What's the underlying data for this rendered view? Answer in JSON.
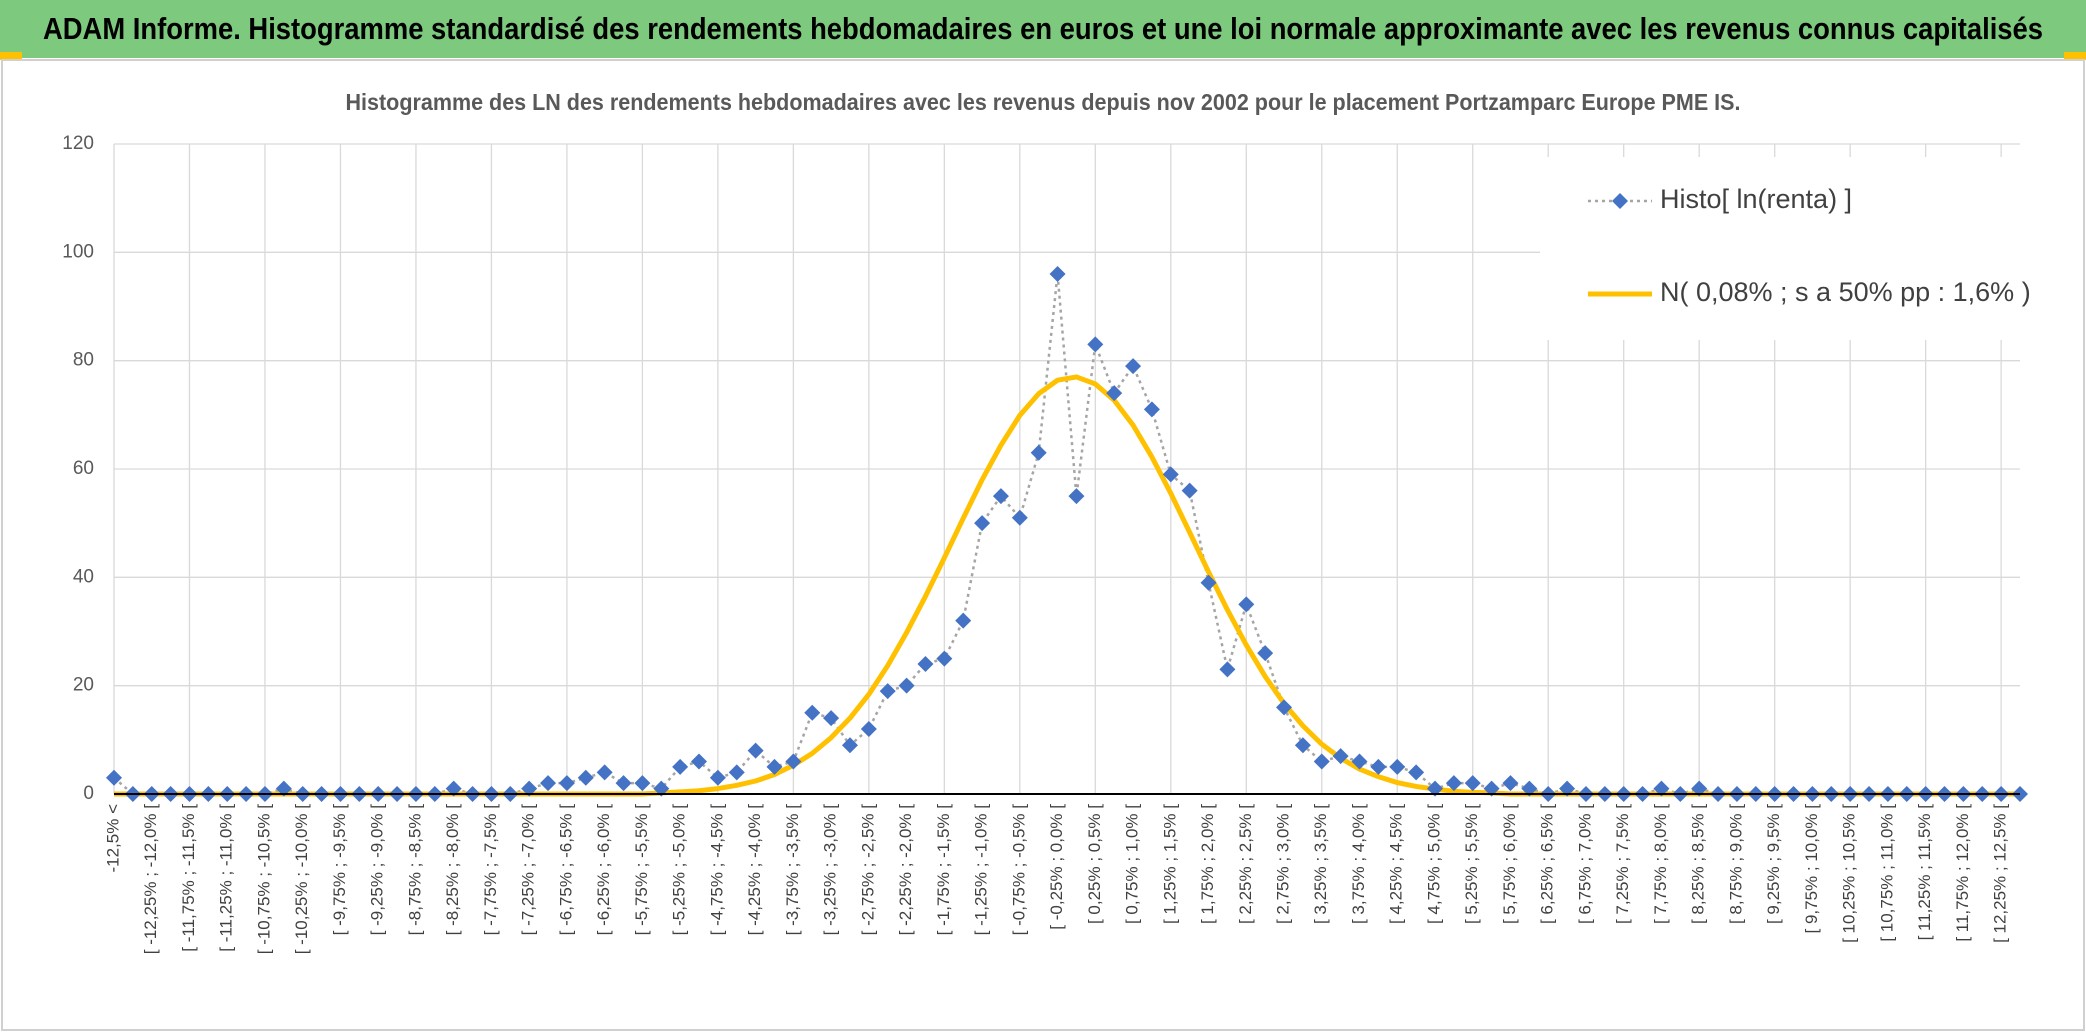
{
  "chart_data": {
    "type": "line",
    "title": "ADAM Informe. Histogramme standardisé des rendements hebdomadaires en euros et une loi normale approximante avec les revenus connus capitalisés",
    "subtitle": "Histogramme des LN des rendements hebdomadaires avec les revenus depuis nov 2002 pour le placement Portzamparc Europe PME IS.",
    "categories": [
      "-12,5% <",
      null,
      "[ -12,25% ; -12,0% [",
      null,
      "[ -11,75% ; -11,5% [",
      null,
      "[ -11,25% ; -11,0% [",
      null,
      "[ -10,75% ; -10,5% [",
      null,
      "[ -10,25% ; -10,0% [",
      null,
      "[ -9,75% ; -9,5% [",
      null,
      "[ -9,25% ; -9,0% [",
      null,
      "[ -8,75% ; -8,5% [",
      null,
      "[ -8,25% ; -8,0% [",
      null,
      "[ -7,75% ; -7,5% [",
      null,
      "[ -7,25% ; -7,0% [",
      null,
      "[ -6,75% ; -6,5% [",
      null,
      "[ -6,25% ; -6,0% [",
      null,
      "[ -5,75% ; -5,5% [",
      null,
      "[ -5,25% ; -5,0% [",
      null,
      "[ -4,75% ; -4,5% [",
      null,
      "[ -4,25% ; -4,0% [",
      null,
      "[ -3,75% ; -3,5% [",
      null,
      "[ -3,25% ; -3,0% [",
      null,
      "[ -2,75% ; -2,5% [",
      null,
      "[ -2,25% ; -2,0% [",
      null,
      "[ -1,75% ; -1,5% [",
      null,
      "[ -1,25% ; -1,0% [",
      null,
      "[ -0,75% ; -0,5% [",
      null,
      "[ -0,25% ; 0,0% [",
      null,
      "[ 0,25% ; 0,5% [",
      null,
      "[ 0,75% ; 1,0% [",
      null,
      "[ 1,25% ; 1,5% [",
      null,
      "[ 1,75% ; 2,0% [",
      null,
      "[ 2,25% ; 2,5% [",
      null,
      "[ 2,75% ; 3,0% [",
      null,
      "[ 3,25% ; 3,5% [",
      null,
      "[ 3,75% ; 4,0% [",
      null,
      "[ 4,25% ; 4,5% [",
      null,
      "[ 4,75% ; 5,0% [",
      null,
      "[ 5,25% ; 5,5% [",
      null,
      "[ 5,75% ; 6,0% [",
      null,
      "[ 6,25% ; 6,5% [",
      null,
      "[ 6,75% ; 7,0% [",
      null,
      "[ 7,25% ; 7,5% [",
      null,
      "[ 7,75% ; 8,0% [",
      null,
      "[ 8,25% ; 8,5% [",
      null,
      "[ 8,75% ; 9,0% [",
      null,
      "[ 9,25% ; 9,5% [",
      null,
      "[ 9,75% ; 10,0% [",
      null,
      "[ 10,25% ; 10,5% [",
      null,
      "[ 10,75% ; 11,0% [",
      null,
      "[ 11,25% ; 11,5% [",
      null,
      "[ 11,75% ; 12,0% [",
      null,
      "[ 12,25% ; 12,5% [",
      null
    ],
    "series": [
      {
        "name": "Histo[ ln(renta) ]",
        "color": "#4472c4",
        "line_color": "#a5a5a5",
        "marker": "diamond",
        "values": [
          3,
          0,
          0,
          0,
          0,
          0,
          0,
          0,
          0,
          1,
          0,
          0,
          0,
          0,
          0,
          0,
          0,
          0,
          1,
          0,
          0,
          0,
          1,
          2,
          2,
          3,
          4,
          2,
          2,
          1,
          5,
          6,
          3,
          4,
          8,
          5,
          6,
          15,
          14,
          9,
          12,
          19,
          20,
          24,
          25,
          32,
          50,
          55,
          51,
          63,
          96,
          55,
          83,
          74,
          79,
          71,
          59,
          56,
          39,
          23,
          35,
          26,
          16,
          9,
          6,
          7,
          6,
          5,
          5,
          4,
          1,
          2,
          2,
          1,
          2,
          1,
          0,
          1,
          0,
          0,
          0,
          0,
          1,
          0,
          1,
          0,
          0,
          0,
          0,
          0,
          0,
          0,
          0,
          0,
          0,
          0,
          0,
          0,
          0,
          0,
          0,
          0
        ]
      },
      {
        "name": "N( 0,08% ; s a 50% pp : 1,6% )",
        "color": "#ffc000",
        "marker": "none",
        "values": [
          0,
          0,
          0,
          0,
          0,
          0,
          0,
          0,
          0,
          0,
          0,
          0,
          0,
          0,
          0,
          0,
          0,
          0,
          0,
          0,
          0,
          0,
          0,
          0,
          0,
          0,
          0,
          0,
          0,
          0.2,
          0.4,
          0.6,
          1.0,
          1.6,
          2.4,
          3.6,
          5.3,
          7.5,
          10.4,
          14.0,
          18.4,
          23.7,
          29.8,
          36.5,
          43.6,
          50.9,
          58.0,
          64.4,
          69.9,
          73.9,
          76.4,
          77.0,
          75.7,
          72.7,
          68.1,
          62.2,
          55.5,
          48.3,
          41.0,
          34.0,
          27.5,
          21.7,
          16.7,
          12.6,
          9.2,
          6.6,
          4.6,
          3.2,
          2.1,
          1.4,
          0.9,
          0.5,
          0.3,
          0.2,
          0,
          0,
          0,
          0,
          0,
          0,
          0,
          0,
          0,
          0,
          0,
          0,
          0,
          0,
          0,
          0,
          0,
          0,
          0,
          0,
          0,
          0,
          0,
          0,
          0,
          0,
          0,
          0
        ]
      }
    ],
    "ylim": [
      0,
      120
    ],
    "yticks": [
      0,
      20,
      40,
      60,
      80,
      100,
      120
    ],
    "grid": true,
    "legend": "top-right"
  }
}
